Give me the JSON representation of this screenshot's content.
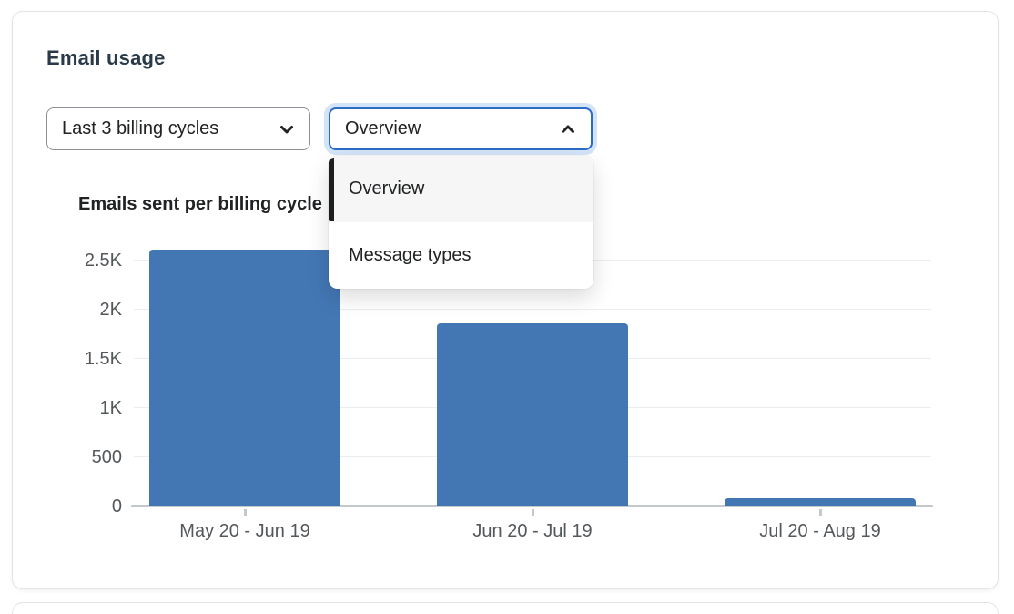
{
  "card": {
    "title": "Email usage",
    "controls": {
      "period_select": {
        "value": "Last 3 billing cycles",
        "icon": "chevron-down"
      },
      "view_select": {
        "value": "Overview",
        "icon": "chevron-up",
        "state": "open-focused"
      }
    },
    "dropdown": {
      "options": [
        {
          "label": "Overview",
          "selected": true
        },
        {
          "label": "Message types",
          "selected": false
        }
      ]
    }
  },
  "chart_data": {
    "type": "bar",
    "title": "Emails sent per billing cycle",
    "categories": [
      "May 20 - Jun 19",
      "Jun 20 - Jul 19",
      "Jul 20 - Aug 19"
    ],
    "values": [
      2600,
      1850,
      75
    ],
    "y_ticks": [
      {
        "label": "0",
        "value": 0
      },
      {
        "label": "500",
        "value": 500
      },
      {
        "label": "1K",
        "value": 1000
      },
      {
        "label": "1.5K",
        "value": 1500
      },
      {
        "label": "2K",
        "value": 2000
      },
      {
        "label": "2.5K",
        "value": 2500
      }
    ],
    "ylim": [
      0,
      2500
    ],
    "xlabel": "",
    "ylabel": "",
    "grid": true,
    "legend": false,
    "bar_color": "#4377b4"
  },
  "colors": {
    "focus_border": "#2b6cc6",
    "focus_halo": "#d3e3f8",
    "selected_indicator": "#1c1e1f",
    "grid_line": "#ebedef",
    "axis_line": "#c3c8cc"
  }
}
